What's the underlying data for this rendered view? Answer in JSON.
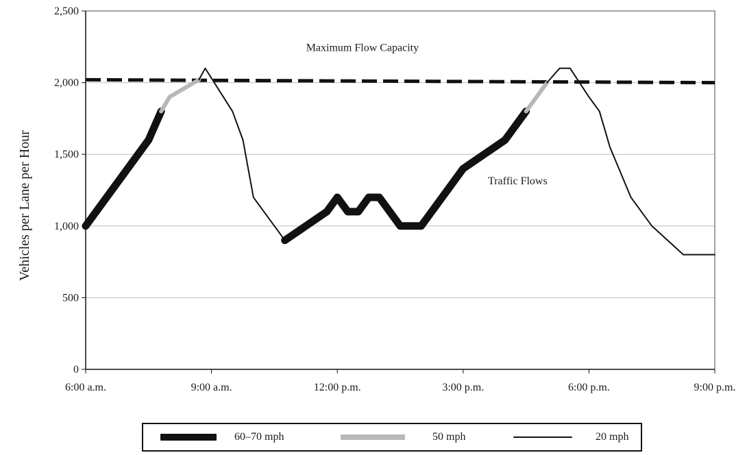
{
  "chart_data": {
    "type": "line",
    "ylabel": "Vehicles per Lane per Hour",
    "xlabel": "",
    "title": "",
    "ylim": [
      0,
      2500
    ],
    "yticks": [
      0,
      500,
      1000,
      1500,
      2000,
      2500
    ],
    "ytick_labels": [
      "0",
      "500",
      "1,000",
      "1,500",
      "2,000",
      "2,500"
    ],
    "xlim": [
      6,
      21
    ],
    "xticks": [
      6,
      9,
      12,
      15,
      18,
      21
    ],
    "xtick_labels": [
      "6:00 a.m.",
      "9:00 a.m.",
      "12:00 p.m.",
      "3:00 p.m.",
      "6:00 p.m.",
      "9:00 p.m."
    ],
    "grid": true,
    "annotations": [
      {
        "text": "Maximum Flow Capacity",
        "x": 12.6,
        "y": 2220
      },
      {
        "text": "Traffic Flows",
        "x": 16.3,
        "y": 1290
      }
    ],
    "capacity_line": {
      "x": [
        6,
        21
      ],
      "y": [
        2020,
        2000
      ],
      "style": "dashed"
    },
    "series": [
      {
        "name": "60–70 mph",
        "color": "#111111",
        "x": [
          6.0,
          7.5,
          7.8
        ],
        "y": [
          1000,
          1600,
          1800
        ]
      },
      {
        "name": "50 mph",
        "color": "#b8b8b8",
        "x": [
          7.8,
          8.0,
          8.7
        ],
        "y": [
          1800,
          1900,
          2020
        ]
      },
      {
        "name": "20 mph",
        "color": "#111111",
        "x": [
          8.7,
          8.85,
          9.5,
          9.75,
          10.0,
          10.75
        ],
        "y": [
          2020,
          2100,
          1800,
          1600,
          1200,
          900
        ]
      },
      {
        "name": "60–70 mph",
        "color": "#111111",
        "x": [
          10.75,
          11.75,
          12.0,
          12.25,
          12.5,
          12.75,
          13.0,
          13.5,
          14.0,
          15.0,
          16.0,
          16.5
        ],
        "y": [
          900,
          1100,
          1200,
          1100,
          1100,
          1200,
          1200,
          1000,
          1000,
          1400,
          1600,
          1800
        ]
      },
      {
        "name": "50 mph",
        "color": "#b8b8b8",
        "x": [
          16.5,
          17.0
        ],
        "y": [
          1800,
          2000
        ]
      },
      {
        "name": "20 mph",
        "color": "#111111",
        "x": [
          17.0,
          17.3,
          17.55,
          18.0,
          18.25,
          18.5,
          19.0,
          19.5,
          20.25,
          21.0
        ],
        "y": [
          2000,
          2100,
          2100,
          1900,
          1800,
          1550,
          1200,
          1000,
          800,
          800
        ]
      }
    ],
    "legend": {
      "placement": "bottom",
      "entries": [
        {
          "label": "60–70 mph",
          "color": "#111111"
        },
        {
          "label": "50 mph",
          "color": "#b8b8b8"
        },
        {
          "label": "20 mph",
          "color": "#111111"
        }
      ]
    }
  }
}
